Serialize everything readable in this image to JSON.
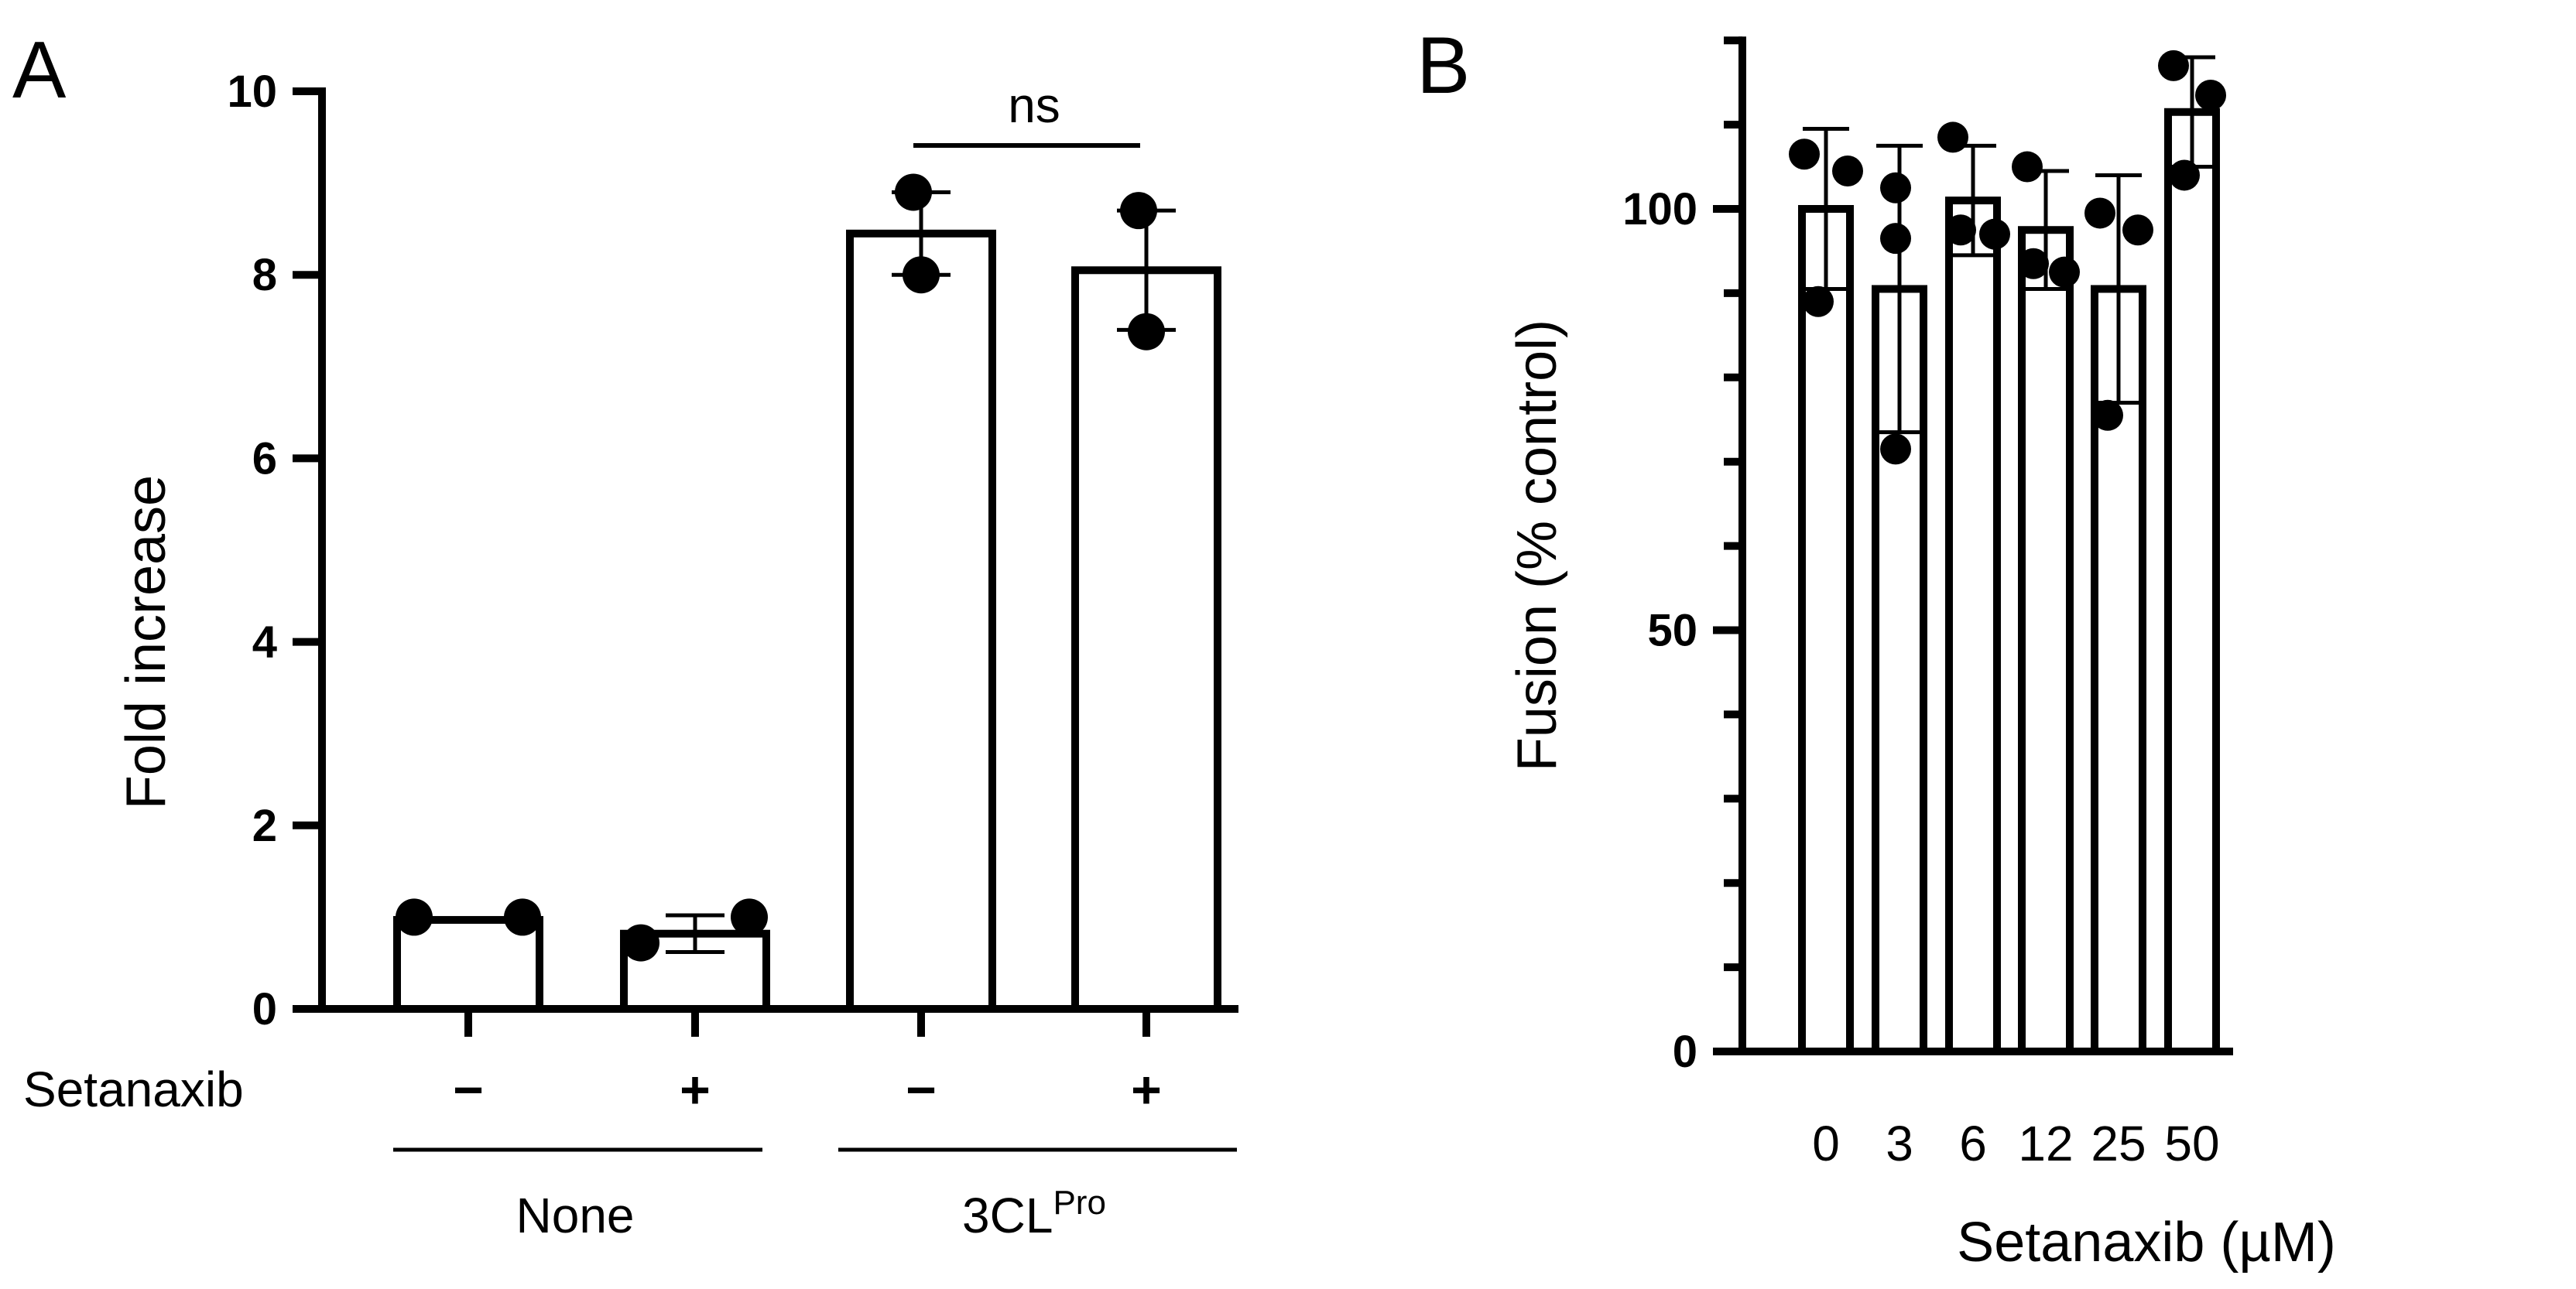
{
  "chart_data": [
    {
      "panel": "A",
      "type": "bar",
      "ylabel": "Fold increase",
      "ylim": [
        0,
        10
      ],
      "yticks": [
        "0",
        "2",
        "4",
        "6",
        "8",
        "10"
      ],
      "row_label": "Setanaxib",
      "categories": [
        "−",
        "+",
        "−",
        "+"
      ],
      "groups": [
        {
          "name": "None",
          "sup": ""
        },
        {
          "name": "3CL",
          "sup": "Pro"
        }
      ],
      "values": [
        0.97,
        0.82,
        8.45,
        8.05
      ],
      "errors": [
        0.0,
        0.2,
        0.45,
        0.65
      ],
      "points": [
        [
          1.0,
          1.0
        ],
        [
          0.72,
          1.0
        ],
        [
          8.9,
          8.0
        ],
        [
          8.7,
          7.38
        ]
      ],
      "annotation": {
        "text": "ns",
        "between": [
          2,
          3
        ]
      }
    },
    {
      "panel": "B",
      "type": "bar",
      "xlabel": "Setanaxib (µM)",
      "ylabel": "Fusion (% control)",
      "ylim": [
        0,
        120
      ],
      "yticks": [
        "0",
        "50",
        "100"
      ],
      "categories": [
        "0",
        "3",
        "6",
        "12",
        "25",
        "50"
      ],
      "values": [
        100,
        90.5,
        101,
        97.5,
        90.5,
        111.5
      ],
      "errors": [
        9.5,
        17,
        6.5,
        7,
        13.5,
        6.5
      ],
      "points": [
        [
          106.5,
          104.5,
          89
        ],
        [
          102.5,
          96.5,
          71.5
        ],
        [
          108.5,
          97,
          97.5
        ],
        [
          105,
          92.5,
          93.5
        ],
        [
          99.5,
          97.5,
          75.5
        ],
        [
          117,
          113.5,
          104
        ]
      ]
    }
  ]
}
